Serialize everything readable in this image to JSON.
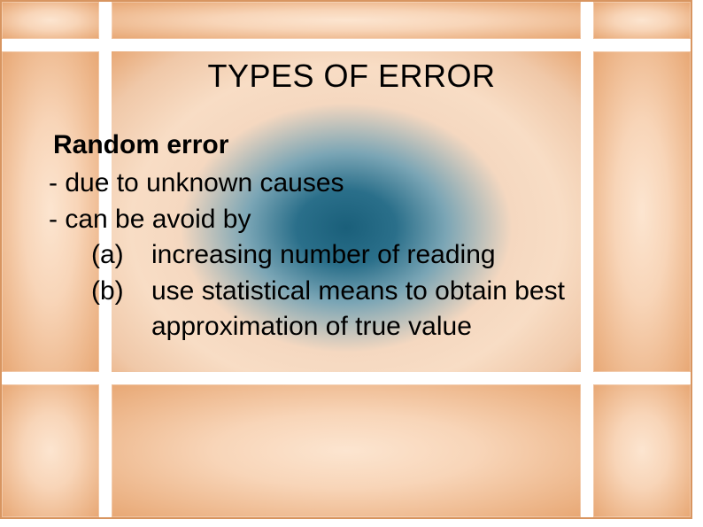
{
  "slide": {
    "title": "TYPES OF ERROR",
    "subtitle": "Random error",
    "bullet1": "-  due to unknown causes",
    "bullet2": "-  can be avoid by",
    "subA_label": "(a)",
    "subA_text": "increasing number of reading",
    "subB_label": "(b)",
    "subB_text": "use statistical means to obtain best",
    "subB_cont": "approximation of true value"
  },
  "style": {
    "title_fontsize": 36,
    "body_fontsize": 30,
    "text_color": "#000000",
    "tile_gradient_inner": "#fce5d0",
    "tile_gradient_outer": "#e8a875",
    "main_gradient_center": "#1a5f7a",
    "main_gradient_mid": "#f5d8c0",
    "main_gradient_edge": "#e8a875",
    "spacer_color": "#ffffff",
    "slide_width": 794,
    "slide_height": 595
  }
}
